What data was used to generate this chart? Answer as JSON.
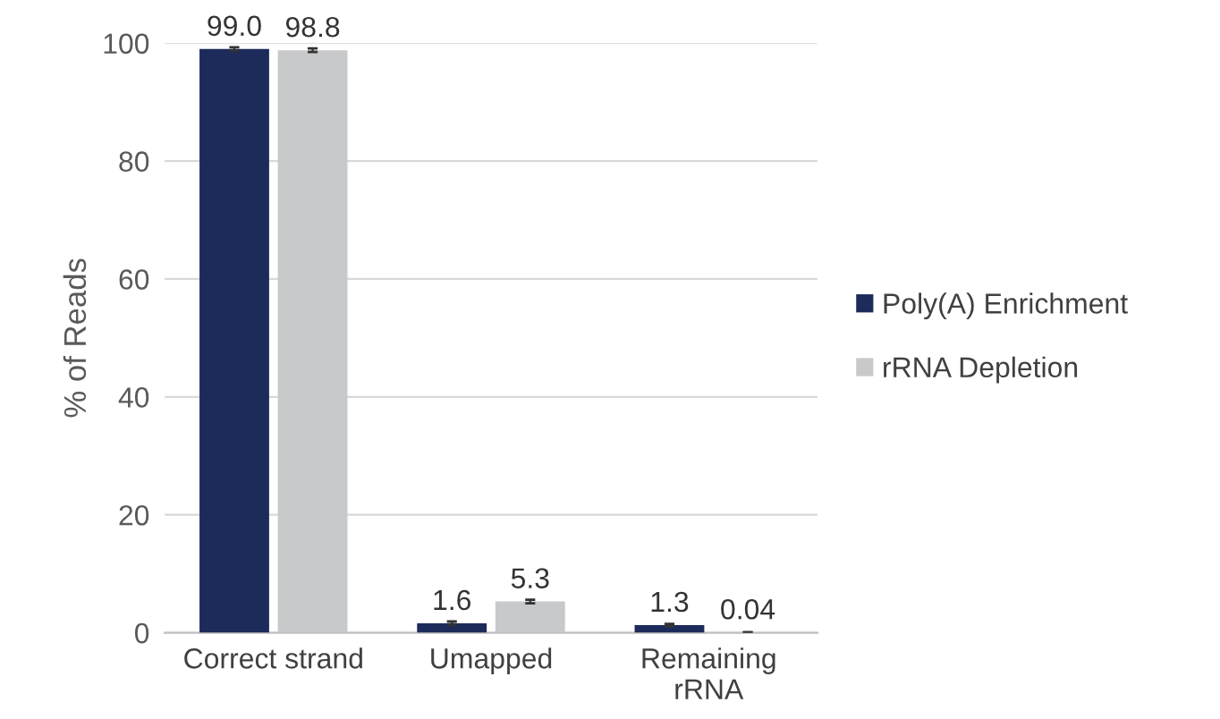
{
  "chart_data": {
    "type": "bar",
    "ylabel": "% of Reads",
    "categories": [
      "Correct strand",
      "Umapped",
      "Remaining\nrRNA"
    ],
    "series": [
      {
        "name": "Poly(A) Enrichment",
        "color": "#1c2b5a",
        "values": [
          99.0,
          1.6,
          1.3
        ],
        "errors": [
          0.3,
          0.3,
          0.2
        ],
        "value_labels": [
          "99.0",
          "1.6",
          "1.3"
        ]
      },
      {
        "name": "rRNA Depletion",
        "color": "#c8c9cb",
        "values": [
          98.8,
          5.3,
          0.04
        ],
        "errors": [
          0.3,
          0.3,
          0.05
        ],
        "value_labels": [
          "98.8",
          "5.3",
          "0.04"
        ]
      }
    ],
    "ylim": [
      0,
      100
    ],
    "yticks": [
      0,
      20,
      40,
      60,
      80,
      100
    ],
    "grid": "y",
    "legend": "right"
  }
}
